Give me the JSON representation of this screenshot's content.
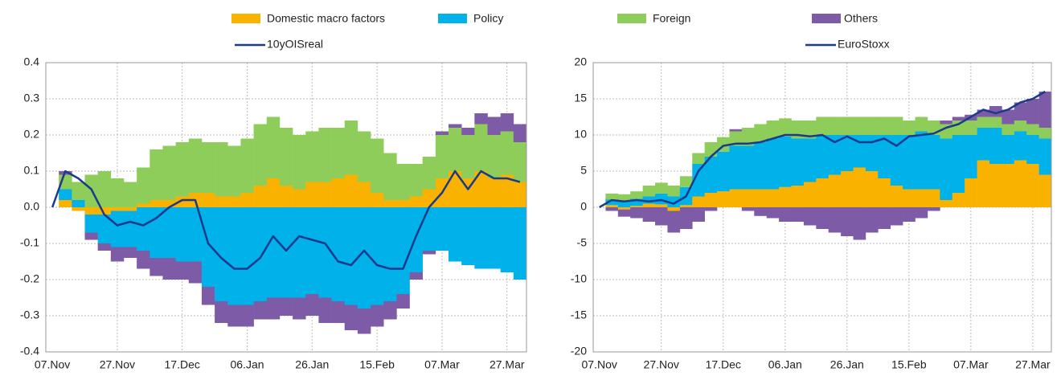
{
  "chart_data": [
    {
      "type": "bar",
      "stacked": true,
      "grid": true,
      "categories": [
        "07.Nov",
        null,
        null,
        null,
        null,
        "27.Nov",
        null,
        null,
        null,
        null,
        "17.Dec",
        null,
        null,
        null,
        null,
        "06.Jan",
        null,
        null,
        null,
        null,
        "26.Jan",
        null,
        null,
        null,
        null,
        "15.Feb",
        null,
        null,
        null,
        null,
        "07.Mar",
        null,
        null,
        null,
        null,
        "27.Mar",
        null
      ],
      "ylim": [
        -0.4,
        0.4
      ],
      "yticks": [
        -0.4,
        -0.3,
        -0.2,
        -0.1,
        {
          "value": 0,
          "label": "0.0"
        },
        0.1,
        0.2,
        0.3,
        0.4
      ],
      "series": [
        {
          "name": "Domestic macro factors",
          "color": "#f9b200",
          "values": [
            0,
            0.02,
            -0.01,
            -0.02,
            -0.02,
            -0.01,
            -0.01,
            0.01,
            0.02,
            0.02,
            0.03,
            0.04,
            0.04,
            0.03,
            0.03,
            0.04,
            0.06,
            0.08,
            0.06,
            0.05,
            0.07,
            0.07,
            0.08,
            0.09,
            0.07,
            0.04,
            0.02,
            0.02,
            0.03,
            0.05,
            0.08,
            0.1,
            0.08,
            0.1,
            0.08,
            0.09,
            0.07
          ]
        },
        {
          "name": "Policy",
          "color": "#00b1ea",
          "values": [
            0,
            0.03,
            0.02,
            -0.05,
            -0.08,
            -0.1,
            -0.1,
            -0.12,
            -0.14,
            -0.14,
            -0.15,
            -0.15,
            -0.22,
            -0.26,
            -0.27,
            -0.27,
            -0.26,
            -0.25,
            -0.25,
            -0.25,
            -0.24,
            -0.25,
            -0.26,
            -0.27,
            -0.28,
            -0.27,
            -0.26,
            -0.24,
            -0.18,
            -0.12,
            -0.12,
            -0.15,
            -0.16,
            -0.17,
            -0.17,
            -0.18,
            -0.2
          ]
        },
        {
          "name": "Foreign",
          "color": "#8fcd5a",
          "values": [
            0,
            0.04,
            0.05,
            0.09,
            0.1,
            0.08,
            0.07,
            0.1,
            0.14,
            0.15,
            0.15,
            0.15,
            0.14,
            0.15,
            0.14,
            0.15,
            0.17,
            0.17,
            0.16,
            0.15,
            0.14,
            0.15,
            0.14,
            0.15,
            0.14,
            0.15,
            0.13,
            0.1,
            0.09,
            0.09,
            0.12,
            0.12,
            0.12,
            0.13,
            0.12,
            0.12,
            0.11
          ]
        },
        {
          "name": "Others",
          "color": "#7d5ba6",
          "values": [
            0,
            0.01,
            0,
            -0.02,
            -0.02,
            -0.04,
            -0.03,
            -0.05,
            -0.05,
            -0.06,
            -0.05,
            -0.06,
            -0.05,
            -0.06,
            -0.06,
            -0.06,
            -0.05,
            -0.06,
            -0.05,
            -0.06,
            -0.06,
            -0.07,
            -0.06,
            -0.07,
            -0.07,
            -0.06,
            -0.05,
            -0.04,
            -0.02,
            -0.01,
            0.01,
            0.01,
            0.02,
            0.03,
            0.05,
            0.05,
            0.05
          ]
        },
        {
          "name": "10yOISreal",
          "type": "line",
          "color": "#1b3a8c",
          "values": [
            0,
            0.1,
            0.08,
            0.05,
            -0.02,
            -0.05,
            -0.04,
            -0.05,
            -0.03,
            0,
            0.02,
            0.02,
            -0.1,
            -0.14,
            -0.17,
            -0.17,
            -0.14,
            -0.08,
            -0.12,
            -0.08,
            -0.09,
            -0.1,
            -0.15,
            -0.16,
            -0.12,
            -0.16,
            -0.17,
            -0.17,
            -0.08,
            0,
            0.04,
            0.1,
            0.05,
            0.1,
            0.08,
            0.08,
            0.07
          ]
        }
      ]
    },
    {
      "type": "bar",
      "stacked": true,
      "grid": true,
      "categories": [
        "07.Nov",
        null,
        null,
        null,
        null,
        "27.Nov",
        null,
        null,
        null,
        null,
        "17.Dec",
        null,
        null,
        null,
        null,
        "06.Jan",
        null,
        null,
        null,
        null,
        "26.Jan",
        null,
        null,
        null,
        null,
        "15.Feb",
        null,
        null,
        null,
        null,
        "07.Mar",
        null,
        null,
        null,
        null,
        "27.Mar",
        null
      ],
      "ylim": [
        -20,
        20
      ],
      "yticks": [
        -20,
        -15,
        -10,
        -5,
        0,
        5,
        10,
        15,
        20
      ],
      "series": [
        {
          "color": "#f9b200",
          "values": [
            0,
            0.3,
            -0.3,
            0.2,
            0.5,
            0.4,
            -0.5,
            0.3,
            1.5,
            2,
            2.2,
            2.5,
            2.5,
            2.5,
            2.5,
            2.8,
            3,
            3.5,
            4,
            4.5,
            5,
            5.5,
            5,
            4,
            3,
            2.5,
            2.5,
            2.5,
            1,
            2,
            4,
            6.5,
            6,
            6,
            6.5,
            6,
            4.5
          ]
        },
        {
          "color": "#00b1ea",
          "values": [
            0,
            0.8,
            0.8,
            1,
            1,
            1.5,
            1.5,
            2.5,
            4.5,
            5,
            5.5,
            6,
            6,
            6.5,
            7,
            7,
            6.5,
            6,
            6,
            5.5,
            5,
            4.5,
            5,
            6,
            7,
            7.5,
            8,
            7.5,
            8.5,
            8,
            6,
            4.5,
            5,
            4,
            4,
            4,
            5
          ]
        },
        {
          "color": "#8fcd5a",
          "values": [
            0,
            0.8,
            1,
            1,
            1.5,
            1.5,
            1.5,
            1.5,
            1.5,
            2,
            2,
            2,
            2.5,
            2.5,
            2.5,
            2.5,
            2.5,
            2.5,
            2.5,
            2.5,
            2.5,
            2.5,
            2.5,
            2.5,
            2.5,
            2,
            2,
            2,
            2,
            2,
            2,
            1.5,
            1.5,
            1.5,
            1.5,
            1.5,
            1.5
          ]
        },
        {
          "color": "#7d5ba6",
          "values": [
            0,
            -0.5,
            -1,
            -1.5,
            -2,
            -2.5,
            -3,
            -3,
            -2,
            -0.5,
            0,
            0.3,
            -0.5,
            -1.2,
            -1.5,
            -2,
            -2,
            -2.5,
            -3,
            -3.5,
            -4,
            -4.5,
            -3.5,
            -3,
            -2.5,
            -2,
            -1.5,
            -0.5,
            0.5,
            0.5,
            0.8,
            1,
            1.5,
            2,
            2.5,
            3.5,
            5
          ]
        },
        {
          "name": "EuroStoxx",
          "type": "line",
          "color": "#1b3a8c",
          "values": [
            0,
            1,
            0.8,
            1,
            0.8,
            1,
            0.5,
            1.5,
            5,
            7,
            8.5,
            8.8,
            8.8,
            9,
            9.5,
            10,
            10,
            9.8,
            10,
            9,
            9.8,
            9,
            9,
            9.5,
            8.5,
            9.8,
            10,
            10.2,
            11,
            11.5,
            12.5,
            13.5,
            13,
            13.5,
            14.5,
            15,
            16
          ]
        }
      ]
    }
  ]
}
